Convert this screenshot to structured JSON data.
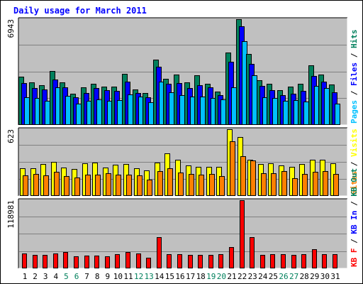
{
  "title": "Daily usage for March 2011",
  "colors": {
    "hits": "#00805c",
    "files": "#0000ff",
    "pages": "#00c0ff",
    "visits": "#ffff00",
    "sites": "#ff8000",
    "kbin": "#0000ff",
    "kbout": "#00805c",
    "kbf": "#ff0000",
    "weekday_label": "#000000",
    "weekend_label": "#00805c",
    "panel_bg": "#c0c0c0",
    "grid": "#808080"
  },
  "chart_data": [
    {
      "type": "bar",
      "panel": "top",
      "ymax_label": "6943",
      "ymax": 6943,
      "categories": [
        "1",
        "2",
        "3",
        "4",
        "5",
        "6",
        "7",
        "8",
        "9",
        "10",
        "11",
        "12",
        "13",
        "14",
        "15",
        "16",
        "17",
        "18",
        "19",
        "20",
        "21",
        "22",
        "23",
        "24",
        "25",
        "26",
        "27",
        "28",
        "29",
        "30",
        "31"
      ],
      "weekend": [
        "5",
        "6",
        "12",
        "13",
        "19",
        "20",
        "26",
        "27"
      ],
      "legend": {
        "pages": "Pages",
        "sep1": " / ",
        "files": "Files",
        "sep2": " / ",
        "hits": "Hits"
      },
      "series": [
        {
          "name": "Hits",
          "key": "hits",
          "values": [
            3150,
            2800,
            2600,
            3550,
            2800,
            2050,
            2450,
            2700,
            2500,
            2500,
            3350,
            2350,
            2100,
            4300,
            3050,
            3300,
            2800,
            3250,
            2700,
            2200,
            4750,
            6943,
            4650,
            2950,
            2700,
            2300,
            2500,
            2700,
            3900,
            3300,
            2650
          ]
        },
        {
          "name": "Files",
          "key": "files",
          "values": [
            2750,
            2400,
            2350,
            3000,
            2450,
            1800,
            2100,
            2400,
            2300,
            2250,
            2850,
            2100,
            1800,
            3800,
            2700,
            2750,
            2400,
            2600,
            2450,
            1950,
            4150,
            6500,
            4000,
            2550,
            2300,
            1950,
            2050,
            2250,
            3200,
            2850,
            2150
          ]
        },
        {
          "name": "Pages",
          "key": "pages",
          "values": [
            1800,
            1750,
            1600,
            2450,
            1900,
            1400,
            1600,
            1700,
            1600,
            1650,
            2000,
            1850,
            1500,
            2850,
            2150,
            1950,
            1850,
            1850,
            1750,
            1700,
            2450,
            5500,
            3250,
            1800,
            1750,
            1600,
            1650,
            1550,
            2550,
            2400,
            1400
          ]
        }
      ]
    },
    {
      "type": "bar",
      "panel": "middle",
      "ymax_label": "623",
      "ymax": 623,
      "categories": [
        "1",
        "2",
        "3",
        "4",
        "5",
        "6",
        "7",
        "8",
        "9",
        "10",
        "11",
        "12",
        "13",
        "14",
        "15",
        "16",
        "17",
        "18",
        "19",
        "20",
        "21",
        "22",
        "23",
        "24",
        "25",
        "26",
        "27",
        "28",
        "29",
        "30",
        "31"
      ],
      "legend": {
        "sites": "Sites",
        "sep1": " / ",
        "visits": "Visits"
      },
      "series": [
        {
          "name": "Visits",
          "key": "visits",
          "values": [
            260,
            260,
            300,
            320,
            265,
            250,
            305,
            310,
            265,
            290,
            295,
            260,
            240,
            310,
            400,
            335,
            285,
            275,
            270,
            275,
            623,
            550,
            340,
            300,
            305,
            285,
            270,
            300,
            340,
            335,
            305
          ]
        },
        {
          "name": "Sites",
          "key": "sites",
          "values": [
            195,
            205,
            190,
            225,
            185,
            175,
            200,
            200,
            210,
            200,
            200,
            190,
            150,
            235,
            260,
            220,
            205,
            200,
            205,
            185,
            510,
            370,
            330,
            215,
            210,
            230,
            165,
            205,
            225,
            235,
            205
          ]
        }
      ]
    },
    {
      "type": "bar",
      "panel": "bottom",
      "ymax_label": "118981",
      "ymax": 118981,
      "categories": [
        "1",
        "2",
        "3",
        "4",
        "5",
        "6",
        "7",
        "8",
        "9",
        "10",
        "11",
        "12",
        "13",
        "14",
        "15",
        "16",
        "17",
        "18",
        "19",
        "20",
        "21",
        "22",
        "23",
        "24",
        "25",
        "26",
        "27",
        "28",
        "29",
        "30",
        "31"
      ],
      "legend": {
        "kbf": "KB F",
        "sep1": " / ",
        "kbin": "KB In",
        "sep2": " / ",
        "kbout": "KB Out"
      },
      "series": [
        {
          "name": "KB F",
          "key": "kbf",
          "values": [
            26500,
            24000,
            24000,
            25500,
            29000,
            21000,
            22000,
            22500,
            21000,
            25000,
            29000,
            26500,
            18000,
            54000,
            24500,
            25000,
            23000,
            23500,
            24000,
            25000,
            37000,
            118981,
            54000,
            24000,
            24500,
            24500,
            24000,
            25000,
            33000,
            25000,
            24500
          ]
        }
      ]
    }
  ]
}
